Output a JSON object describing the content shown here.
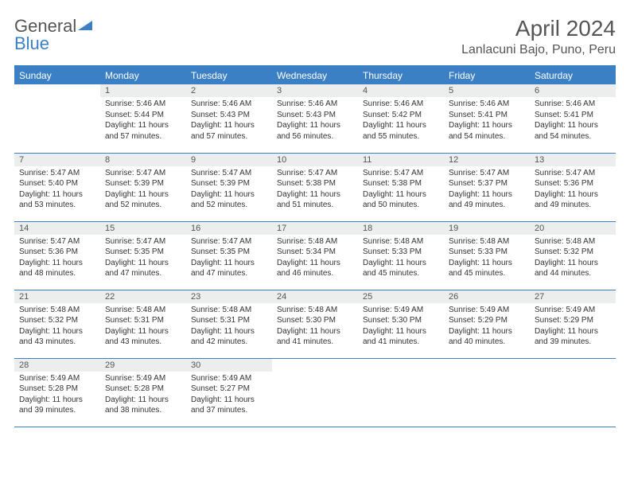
{
  "brand": {
    "part1": "General",
    "part2": "Blue"
  },
  "title": "April 2024",
  "location": "Lanlacuni Bajo, Puno, Peru",
  "colors": {
    "accent": "#3b7fc4",
    "header_bg": "#eceded",
    "text": "#555"
  },
  "day_headers": [
    "Sunday",
    "Monday",
    "Tuesday",
    "Wednesday",
    "Thursday",
    "Friday",
    "Saturday"
  ],
  "weeks": [
    [
      {
        "n": "",
        "sr": "",
        "ss": "",
        "dl": ""
      },
      {
        "n": "1",
        "sr": "Sunrise: 5:46 AM",
        "ss": "Sunset: 5:44 PM",
        "dl": "Daylight: 11 hours and 57 minutes."
      },
      {
        "n": "2",
        "sr": "Sunrise: 5:46 AM",
        "ss": "Sunset: 5:43 PM",
        "dl": "Daylight: 11 hours and 57 minutes."
      },
      {
        "n": "3",
        "sr": "Sunrise: 5:46 AM",
        "ss": "Sunset: 5:43 PM",
        "dl": "Daylight: 11 hours and 56 minutes."
      },
      {
        "n": "4",
        "sr": "Sunrise: 5:46 AM",
        "ss": "Sunset: 5:42 PM",
        "dl": "Daylight: 11 hours and 55 minutes."
      },
      {
        "n": "5",
        "sr": "Sunrise: 5:46 AM",
        "ss": "Sunset: 5:41 PM",
        "dl": "Daylight: 11 hours and 54 minutes."
      },
      {
        "n": "6",
        "sr": "Sunrise: 5:46 AM",
        "ss": "Sunset: 5:41 PM",
        "dl": "Daylight: 11 hours and 54 minutes."
      }
    ],
    [
      {
        "n": "7",
        "sr": "Sunrise: 5:47 AM",
        "ss": "Sunset: 5:40 PM",
        "dl": "Daylight: 11 hours and 53 minutes."
      },
      {
        "n": "8",
        "sr": "Sunrise: 5:47 AM",
        "ss": "Sunset: 5:39 PM",
        "dl": "Daylight: 11 hours and 52 minutes."
      },
      {
        "n": "9",
        "sr": "Sunrise: 5:47 AM",
        "ss": "Sunset: 5:39 PM",
        "dl": "Daylight: 11 hours and 52 minutes."
      },
      {
        "n": "10",
        "sr": "Sunrise: 5:47 AM",
        "ss": "Sunset: 5:38 PM",
        "dl": "Daylight: 11 hours and 51 minutes."
      },
      {
        "n": "11",
        "sr": "Sunrise: 5:47 AM",
        "ss": "Sunset: 5:38 PM",
        "dl": "Daylight: 11 hours and 50 minutes."
      },
      {
        "n": "12",
        "sr": "Sunrise: 5:47 AM",
        "ss": "Sunset: 5:37 PM",
        "dl": "Daylight: 11 hours and 49 minutes."
      },
      {
        "n": "13",
        "sr": "Sunrise: 5:47 AM",
        "ss": "Sunset: 5:36 PM",
        "dl": "Daylight: 11 hours and 49 minutes."
      }
    ],
    [
      {
        "n": "14",
        "sr": "Sunrise: 5:47 AM",
        "ss": "Sunset: 5:36 PM",
        "dl": "Daylight: 11 hours and 48 minutes."
      },
      {
        "n": "15",
        "sr": "Sunrise: 5:47 AM",
        "ss": "Sunset: 5:35 PM",
        "dl": "Daylight: 11 hours and 47 minutes."
      },
      {
        "n": "16",
        "sr": "Sunrise: 5:47 AM",
        "ss": "Sunset: 5:35 PM",
        "dl": "Daylight: 11 hours and 47 minutes."
      },
      {
        "n": "17",
        "sr": "Sunrise: 5:48 AM",
        "ss": "Sunset: 5:34 PM",
        "dl": "Daylight: 11 hours and 46 minutes."
      },
      {
        "n": "18",
        "sr": "Sunrise: 5:48 AM",
        "ss": "Sunset: 5:33 PM",
        "dl": "Daylight: 11 hours and 45 minutes."
      },
      {
        "n": "19",
        "sr": "Sunrise: 5:48 AM",
        "ss": "Sunset: 5:33 PM",
        "dl": "Daylight: 11 hours and 45 minutes."
      },
      {
        "n": "20",
        "sr": "Sunrise: 5:48 AM",
        "ss": "Sunset: 5:32 PM",
        "dl": "Daylight: 11 hours and 44 minutes."
      }
    ],
    [
      {
        "n": "21",
        "sr": "Sunrise: 5:48 AM",
        "ss": "Sunset: 5:32 PM",
        "dl": "Daylight: 11 hours and 43 minutes."
      },
      {
        "n": "22",
        "sr": "Sunrise: 5:48 AM",
        "ss": "Sunset: 5:31 PM",
        "dl": "Daylight: 11 hours and 43 minutes."
      },
      {
        "n": "23",
        "sr": "Sunrise: 5:48 AM",
        "ss": "Sunset: 5:31 PM",
        "dl": "Daylight: 11 hours and 42 minutes."
      },
      {
        "n": "24",
        "sr": "Sunrise: 5:48 AM",
        "ss": "Sunset: 5:30 PM",
        "dl": "Daylight: 11 hours and 41 minutes."
      },
      {
        "n": "25",
        "sr": "Sunrise: 5:49 AM",
        "ss": "Sunset: 5:30 PM",
        "dl": "Daylight: 11 hours and 41 minutes."
      },
      {
        "n": "26",
        "sr": "Sunrise: 5:49 AM",
        "ss": "Sunset: 5:29 PM",
        "dl": "Daylight: 11 hours and 40 minutes."
      },
      {
        "n": "27",
        "sr": "Sunrise: 5:49 AM",
        "ss": "Sunset: 5:29 PM",
        "dl": "Daylight: 11 hours and 39 minutes."
      }
    ],
    [
      {
        "n": "28",
        "sr": "Sunrise: 5:49 AM",
        "ss": "Sunset: 5:28 PM",
        "dl": "Daylight: 11 hours and 39 minutes."
      },
      {
        "n": "29",
        "sr": "Sunrise: 5:49 AM",
        "ss": "Sunset: 5:28 PM",
        "dl": "Daylight: 11 hours and 38 minutes."
      },
      {
        "n": "30",
        "sr": "Sunrise: 5:49 AM",
        "ss": "Sunset: 5:27 PM",
        "dl": "Daylight: 11 hours and 37 minutes."
      },
      {
        "n": "",
        "sr": "",
        "ss": "",
        "dl": ""
      },
      {
        "n": "",
        "sr": "",
        "ss": "",
        "dl": ""
      },
      {
        "n": "",
        "sr": "",
        "ss": "",
        "dl": ""
      },
      {
        "n": "",
        "sr": "",
        "ss": "",
        "dl": ""
      }
    ]
  ]
}
